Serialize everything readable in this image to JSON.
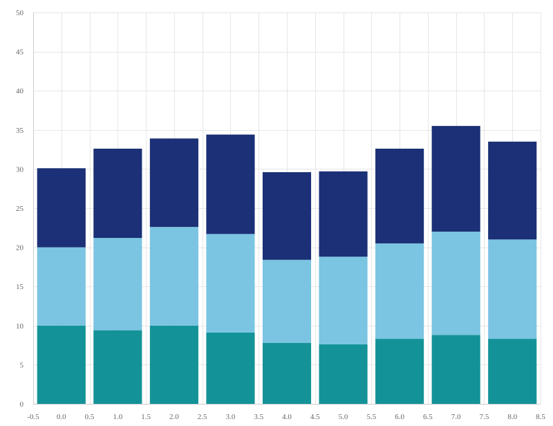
{
  "colors": {
    "series": [
      "#139397",
      "#7bc4e2",
      "#1b3076"
    ],
    "grid": "#e6e6e6",
    "axis": "#cccccc",
    "tick_text": "#666666",
    "background": "#ffffff"
  },
  "chart_data": {
    "type": "bar",
    "stacked": true,
    "title": "",
    "xlabel": "",
    "ylabel": "",
    "x": [
      0,
      1,
      2,
      3,
      4,
      5,
      6,
      7,
      8
    ],
    "series": [
      {
        "values": [
          10.0,
          9.4,
          10.0,
          9.1,
          7.8,
          7.6,
          8.3,
          8.8,
          8.3
        ]
      },
      {
        "values": [
          10.0,
          11.8,
          12.6,
          12.6,
          10.6,
          11.2,
          12.2,
          13.2,
          12.7
        ]
      },
      {
        "values": [
          10.1,
          11.4,
          11.3,
          12.7,
          11.2,
          10.9,
          12.1,
          13.5,
          12.5
        ]
      }
    ],
    "xlim": [
      -0.5,
      8.5
    ],
    "ylim": [
      0,
      50
    ],
    "x_ticks": [
      "-0.5",
      "0.0",
      "0.5",
      "1.0",
      "1.5",
      "2.0",
      "2.5",
      "3.0",
      "3.5",
      "4.0",
      "4.5",
      "5.0",
      "5.5",
      "6.0",
      "6.5",
      "7.0",
      "7.5",
      "8.0",
      "8.5"
    ],
    "y_ticks": [
      "0",
      "5",
      "10",
      "15",
      "20",
      "25",
      "30",
      "35",
      "40",
      "45",
      "50"
    ],
    "bar_width": 0.86,
    "grid": true,
    "legend": "none"
  }
}
